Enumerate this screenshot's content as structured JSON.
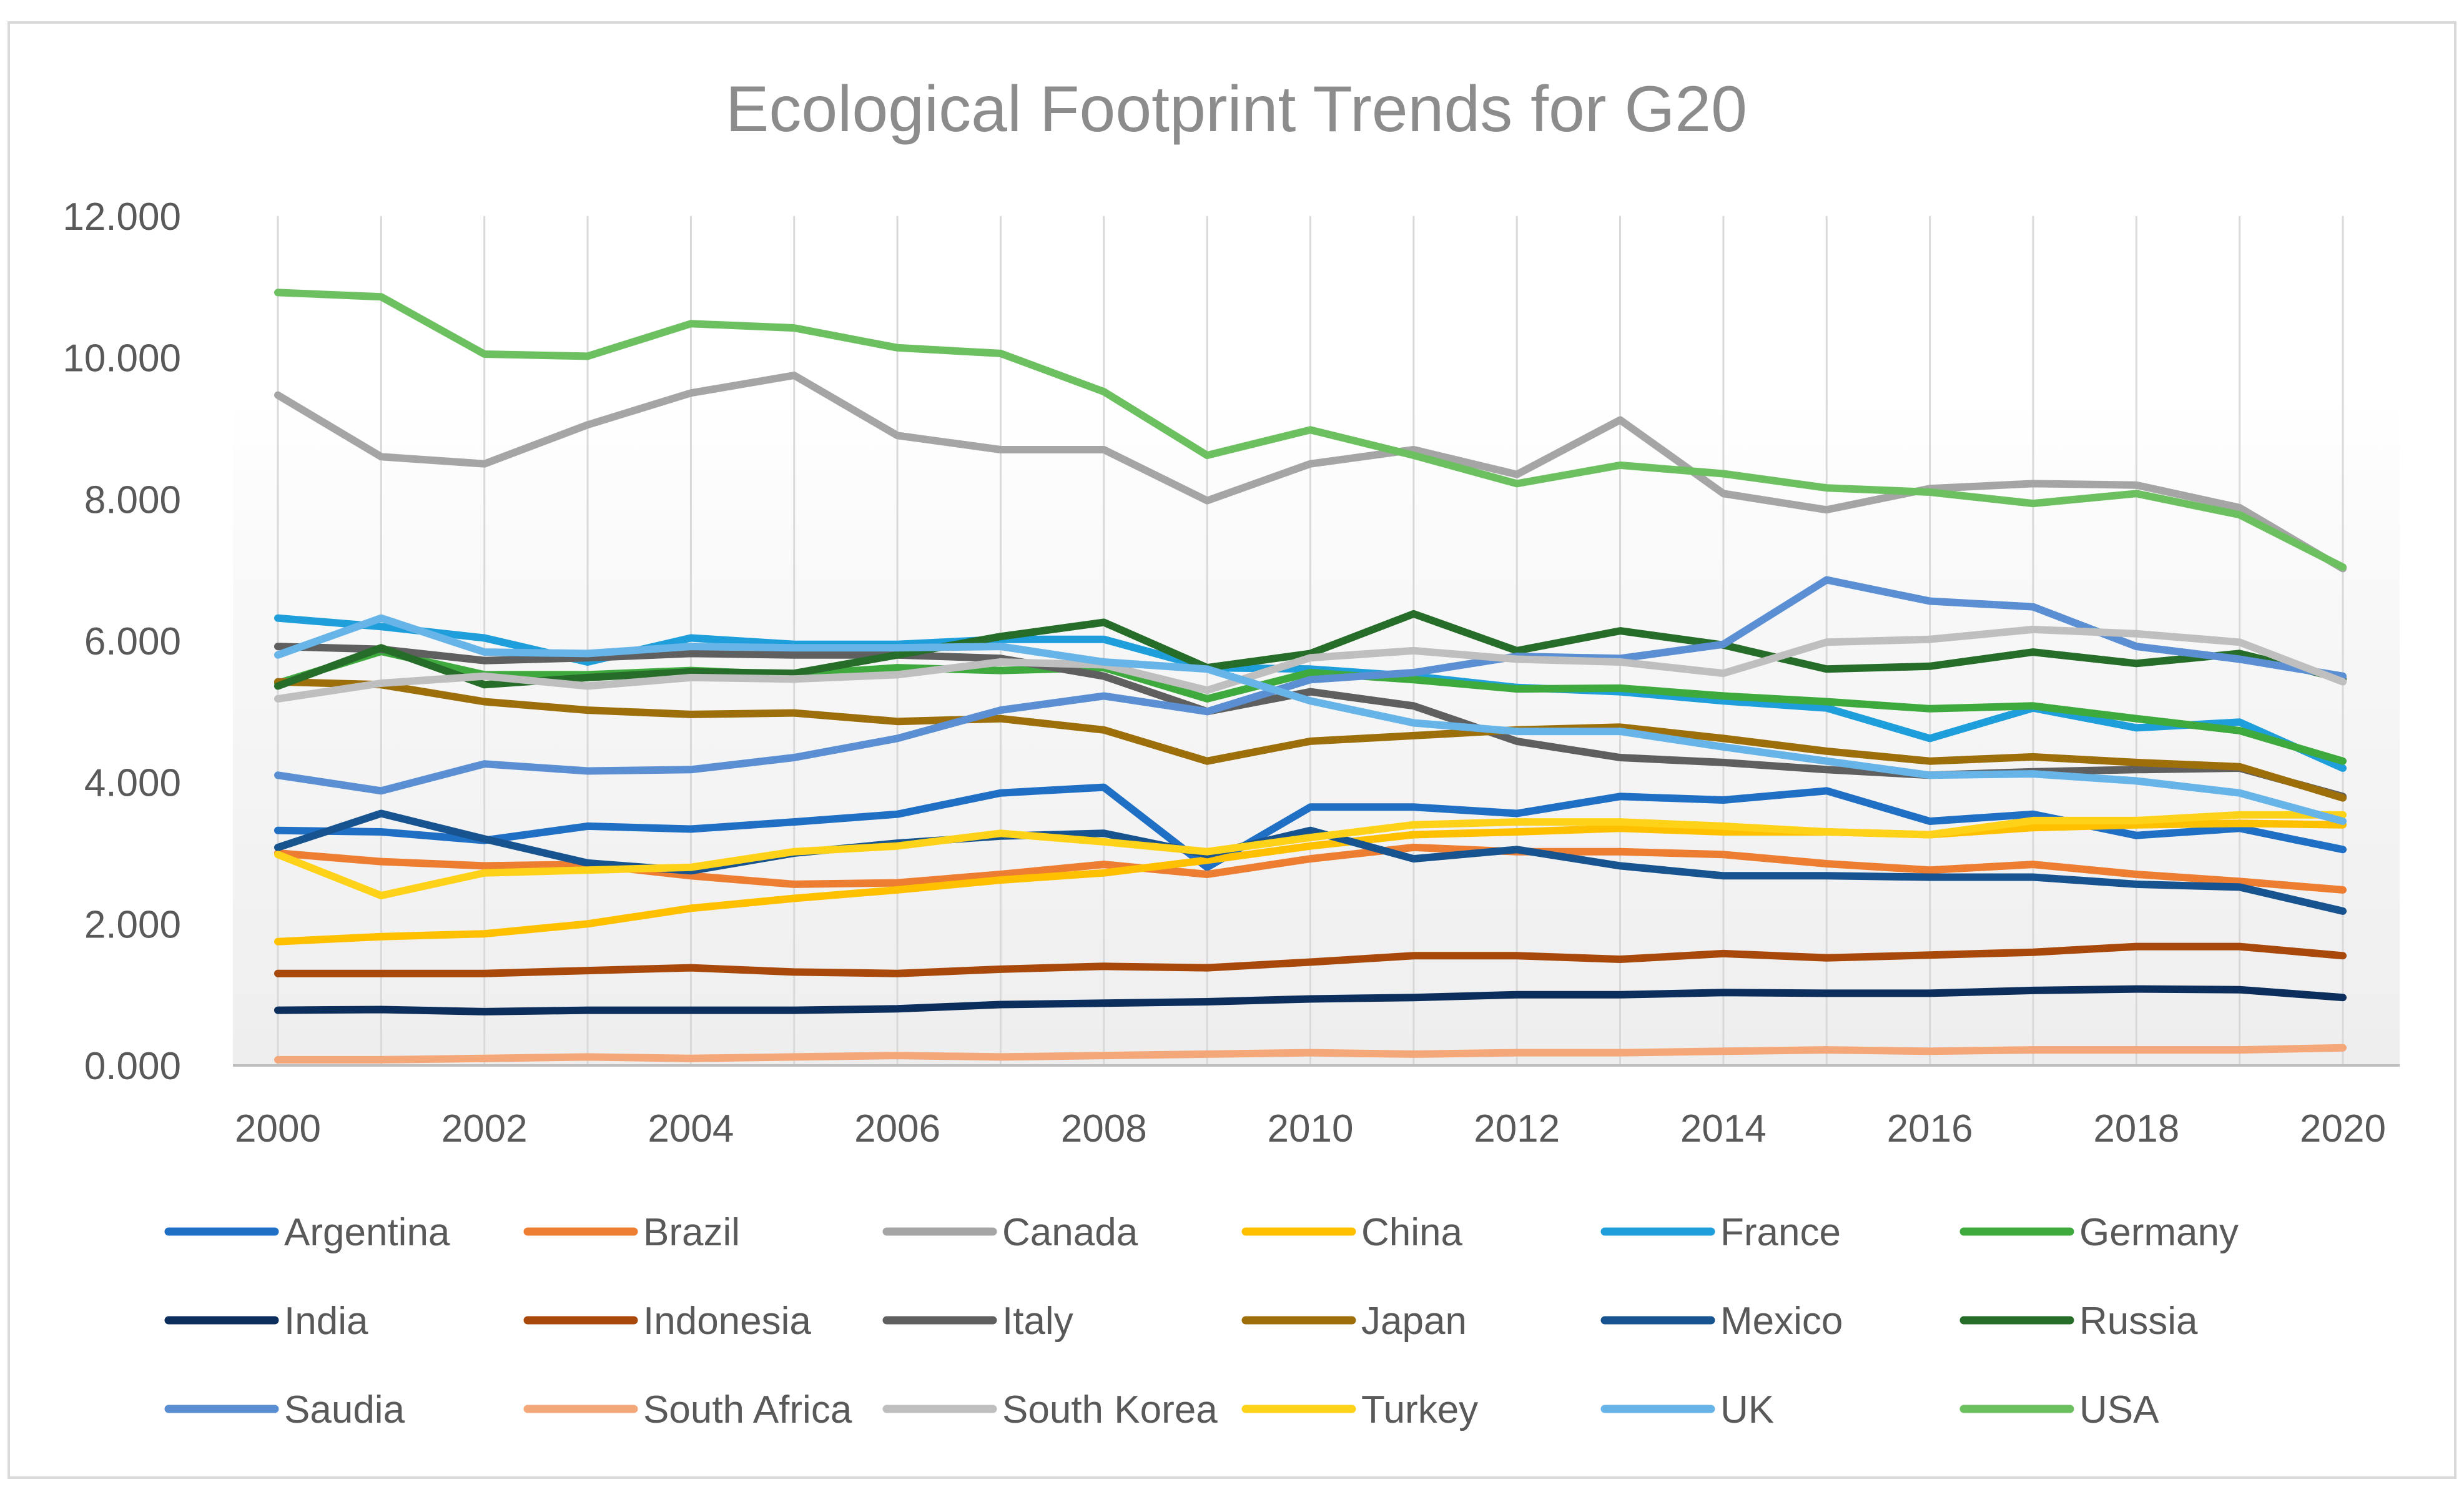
{
  "chart_data": {
    "type": "line",
    "title": "Ecological Footprint Trends for G20",
    "xlabel": "",
    "ylabel": "",
    "ylim": [
      0,
      12
    ],
    "yticks": [
      "0.000",
      "2.000",
      "4.000",
      "6.000",
      "8.000",
      "10.000",
      "12.000"
    ],
    "xlim": [
      2000,
      2020
    ],
    "xticks": [
      "2000",
      "2002",
      "2004",
      "2006",
      "2008",
      "2010",
      "2012",
      "2014",
      "2016",
      "2018",
      "2020"
    ],
    "x": [
      2000,
      2001,
      2002,
      2003,
      2004,
      2005,
      2006,
      2007,
      2008,
      2009,
      2010,
      2011,
      2012,
      2013,
      2014,
      2015,
      2016,
      2017,
      2018,
      2019,
      2020
    ],
    "grid": "vertical",
    "legend_position": "bottom",
    "series": [
      {
        "name": "Argentina",
        "color": "#1F6FC5",
        "values": [
          3.32,
          3.3,
          3.18,
          3.38,
          3.34,
          3.44,
          3.55,
          3.85,
          3.93,
          2.8,
          3.65,
          3.65,
          3.56,
          3.8,
          3.75,
          3.88,
          3.45,
          3.55,
          3.25,
          3.35,
          3.05
        ]
      },
      {
        "name": "Brazil",
        "color": "#ED7D31",
        "values": [
          3.0,
          2.88,
          2.82,
          2.84,
          2.68,
          2.56,
          2.58,
          2.7,
          2.84,
          2.7,
          2.92,
          3.08,
          3.02,
          3.02,
          2.98,
          2.85,
          2.76,
          2.84,
          2.7,
          2.6,
          2.48
        ]
      },
      {
        "name": "Canada",
        "color": "#A5A5A5",
        "values": [
          9.47,
          8.6,
          8.5,
          9.05,
          9.5,
          9.75,
          8.9,
          8.7,
          8.7,
          7.98,
          8.5,
          8.7,
          8.35,
          9.12,
          8.08,
          7.85,
          8.15,
          8.22,
          8.2,
          7.88,
          7.02
        ]
      },
      {
        "name": "China",
        "color": "#FFC000",
        "values": [
          1.75,
          1.82,
          1.86,
          2.0,
          2.22,
          2.36,
          2.48,
          2.62,
          2.72,
          2.9,
          3.1,
          3.26,
          3.3,
          3.35,
          3.3,
          3.3,
          3.26,
          3.36,
          3.4,
          3.42,
          3.4
        ]
      },
      {
        "name": "France",
        "color": "#1E9FDB",
        "values": [
          6.32,
          6.2,
          6.04,
          5.7,
          6.04,
          5.95,
          5.95,
          6.02,
          6.02,
          5.62,
          5.6,
          5.5,
          5.34,
          5.28,
          5.15,
          5.05,
          4.62,
          5.05,
          4.77,
          4.85,
          4.2
        ]
      },
      {
        "name": "Germany",
        "color": "#3EAA3E",
        "values": [
          5.4,
          5.85,
          5.52,
          5.52,
          5.58,
          5.52,
          5.62,
          5.58,
          5.62,
          5.18,
          5.55,
          5.45,
          5.32,
          5.33,
          5.22,
          5.14,
          5.04,
          5.08,
          4.9,
          4.73,
          4.3
        ]
      },
      {
        "name": "India",
        "color": "#0C2E5C",
        "values": [
          0.78,
          0.79,
          0.76,
          0.78,
          0.78,
          0.78,
          0.8,
          0.86,
          0.88,
          0.9,
          0.94,
          0.96,
          1.0,
          1.0,
          1.03,
          1.02,
          1.02,
          1.06,
          1.08,
          1.07,
          0.96
        ]
      },
      {
        "name": "Indonesia",
        "color": "#A9480B",
        "values": [
          1.3,
          1.3,
          1.3,
          1.34,
          1.38,
          1.32,
          1.3,
          1.36,
          1.4,
          1.38,
          1.46,
          1.55,
          1.55,
          1.5,
          1.58,
          1.52,
          1.56,
          1.6,
          1.68,
          1.68,
          1.55
        ]
      },
      {
        "name": "Italy",
        "color": "#5F5F5F",
        "values": [
          5.92,
          5.88,
          5.72,
          5.76,
          5.82,
          5.8,
          5.8,
          5.75,
          5.5,
          5.0,
          5.28,
          5.08,
          4.58,
          4.35,
          4.28,
          4.18,
          4.1,
          4.15,
          4.18,
          4.2,
          3.8
        ]
      },
      {
        "name": "Japan",
        "color": "#9C6F0B",
        "values": [
          5.42,
          5.38,
          5.14,
          5.02,
          4.96,
          4.98,
          4.86,
          4.9,
          4.74,
          4.3,
          4.58,
          4.66,
          4.74,
          4.78,
          4.62,
          4.44,
          4.3,
          4.36,
          4.28,
          4.22,
          3.78
        ]
      },
      {
        "name": "Mexico",
        "color": "#17538F",
        "values": [
          3.08,
          3.56,
          3.2,
          2.86,
          2.75,
          3.0,
          3.14,
          3.24,
          3.28,
          2.98,
          3.32,
          2.92,
          3.05,
          2.82,
          2.68,
          2.68,
          2.66,
          2.66,
          2.56,
          2.52,
          2.18
        ]
      },
      {
        "name": "Russia",
        "color": "#266D2A",
        "values": [
          5.36,
          5.9,
          5.38,
          5.48,
          5.56,
          5.54,
          5.8,
          6.06,
          6.26,
          5.62,
          5.82,
          6.38,
          5.86,
          6.14,
          5.94,
          5.6,
          5.64,
          5.84,
          5.68,
          5.82,
          5.46
        ]
      },
      {
        "name": "Saudia",
        "color": "#5B8FD3",
        "values": [
          4.1,
          3.88,
          4.26,
          4.16,
          4.18,
          4.35,
          4.62,
          5.02,
          5.22,
          5.0,
          5.45,
          5.55,
          5.78,
          5.75,
          5.95,
          6.86,
          6.56,
          6.48,
          5.92,
          5.74,
          5.5
        ]
      },
      {
        "name": "South Africa",
        "color": "#F4A87A",
        "values": [
          0.08,
          0.08,
          0.1,
          0.12,
          0.1,
          0.12,
          0.14,
          0.12,
          0.14,
          0.16,
          0.18,
          0.16,
          0.18,
          0.18,
          0.2,
          0.22,
          0.2,
          0.22,
          0.22,
          0.22,
          0.25
        ]
      },
      {
        "name": "South Korea",
        "color": "#BFBFBF",
        "values": [
          5.18,
          5.4,
          5.5,
          5.36,
          5.48,
          5.46,
          5.52,
          5.7,
          5.66,
          5.3,
          5.76,
          5.86,
          5.74,
          5.7,
          5.54,
          5.98,
          6.02,
          6.16,
          6.1,
          5.98,
          5.42
        ]
      },
      {
        "name": "Turkey",
        "color": "#FFD21A",
        "values": [
          2.98,
          2.4,
          2.72,
          2.76,
          2.8,
          3.02,
          3.1,
          3.28,
          3.16,
          3.02,
          3.22,
          3.4,
          3.44,
          3.44,
          3.38,
          3.3,
          3.26,
          3.46,
          3.46,
          3.54,
          3.54
        ]
      },
      {
        "name": "UK",
        "color": "#66B4E8",
        "values": [
          5.8,
          6.32,
          5.84,
          5.82,
          5.92,
          5.9,
          5.9,
          5.92,
          5.7,
          5.6,
          5.15,
          4.84,
          4.72,
          4.72,
          4.5,
          4.3,
          4.1,
          4.12,
          4.02,
          3.85,
          3.45
        ]
      },
      {
        "name": "USA",
        "color": "#6CC060",
        "values": [
          10.92,
          10.86,
          10.05,
          10.02,
          10.48,
          10.42,
          10.14,
          10.06,
          9.52,
          8.62,
          8.98,
          8.62,
          8.22,
          8.48,
          8.36,
          8.16,
          8.1,
          7.94,
          8.08,
          7.78,
          7.04
        ]
      }
    ]
  }
}
